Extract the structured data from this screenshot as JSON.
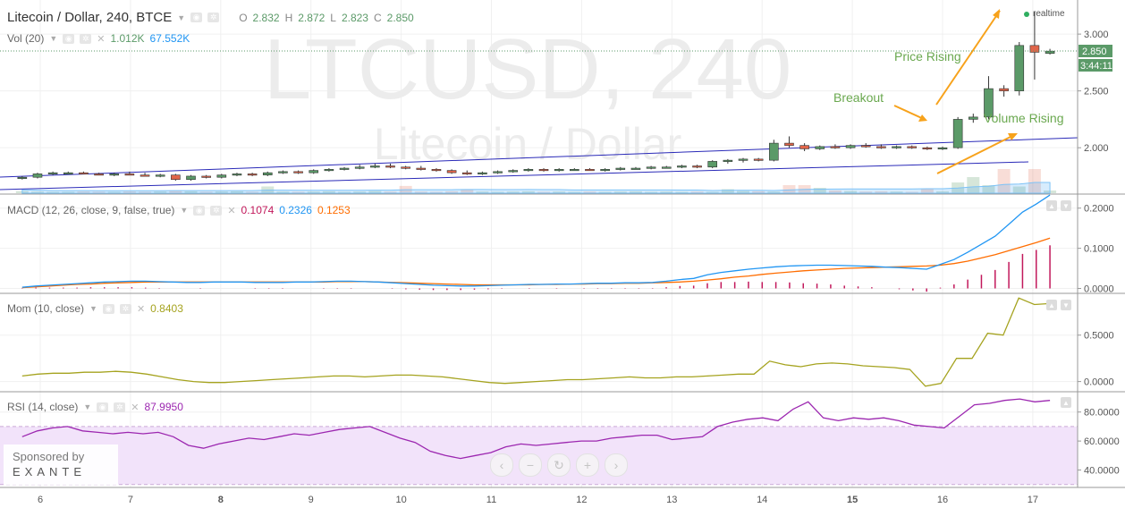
{
  "header": {
    "symbol_title": "Litecoin / Dollar, 240, BTCE",
    "o_label": "O",
    "o_value": "2.832",
    "h_label": "H",
    "h_value": "2.872",
    "l_label": "L",
    "l_value": "2.823",
    "c_label": "C",
    "c_value": "2.850"
  },
  "volume_legend": {
    "name": "Vol (20)",
    "value1": "1.012K",
    "value2": "67.552K"
  },
  "watermark": {
    "line1": "LTCUSD, 240",
    "line2": "Litecoin / Dollar"
  },
  "realtime_label": "realtime",
  "price_label": "2.850",
  "countdown_label": "3:44:11",
  "annotations": {
    "price_rising": "Price Rising",
    "breakout": "Breakout",
    "volume_rising": "Volume Rising"
  },
  "macd_legend": {
    "name": "MACD (12, 26, close, 9, false, true)",
    "v1": "0.1074",
    "v2": "0.2326",
    "v3": "0.1253"
  },
  "mom_legend": {
    "name": "Mom (10, close)",
    "v1": "0.8403"
  },
  "rsi_legend": {
    "name": "RSI (14, close)",
    "v1": "87.9950"
  },
  "sponsor": {
    "line1": "Sponsored by",
    "line2": "EXANTE"
  },
  "nav_icons": [
    "chevron-left-icon",
    "zoom-out-icon",
    "reset-icon",
    "zoom-in-icon",
    "chevron-right-icon"
  ],
  "colors": {
    "up": "#5b9a68",
    "down": "#e0654a",
    "macd": "#2196f3",
    "signal": "#ff6d00",
    "hist": "#c2185b",
    "mom": "#a5a31f",
    "rsi": "#9c27b0",
    "rsi_band": "#f2e3fa",
    "trendline": "#2a2ab8",
    "arrow": "#f7a21b",
    "annotation_text": "#6aa84f"
  },
  "chart_data": [
    {
      "type": "candlestick",
      "title": "Litecoin / Dollar, 240, BTCE",
      "x_ticks": [
        "6",
        "7",
        "8",
        "9",
        "10",
        "11",
        "12",
        "13",
        "14",
        "15",
        "16",
        "17"
      ],
      "y_ticks": [
        "2.000",
        "2.500",
        "3.000"
      ],
      "ylim": [
        1.6,
        3.3
      ],
      "grid": true,
      "candles": [
        {
          "x": 5.8,
          "o": 1.73,
          "h": 1.75,
          "l": 1.72,
          "c": 1.74
        },
        {
          "x": 5.97,
          "o": 1.74,
          "h": 1.78,
          "l": 1.73,
          "c": 1.77
        },
        {
          "x": 6.14,
          "o": 1.77,
          "h": 1.79,
          "l": 1.76,
          "c": 1.78
        },
        {
          "x": 6.31,
          "o": 1.78,
          "h": 1.79,
          "l": 1.77,
          "c": 1.78
        },
        {
          "x": 6.48,
          "o": 1.78,
          "h": 1.79,
          "l": 1.77,
          "c": 1.77
        },
        {
          "x": 6.65,
          "o": 1.77,
          "h": 1.78,
          "l": 1.76,
          "c": 1.76
        },
        {
          "x": 6.82,
          "o": 1.76,
          "h": 1.78,
          "l": 1.75,
          "c": 1.77
        },
        {
          "x": 6.99,
          "o": 1.77,
          "h": 1.79,
          "l": 1.76,
          "c": 1.76
        },
        {
          "x": 7.16,
          "o": 1.76,
          "h": 1.78,
          "l": 1.75,
          "c": 1.75
        },
        {
          "x": 7.33,
          "o": 1.75,
          "h": 1.77,
          "l": 1.74,
          "c": 1.76
        },
        {
          "x": 7.5,
          "o": 1.76,
          "h": 1.77,
          "l": 1.71,
          "c": 1.72
        },
        {
          "x": 7.67,
          "o": 1.72,
          "h": 1.76,
          "l": 1.71,
          "c": 1.75
        },
        {
          "x": 7.84,
          "o": 1.75,
          "h": 1.76,
          "l": 1.73,
          "c": 1.74
        },
        {
          "x": 8.01,
          "o": 1.74,
          "h": 1.77,
          "l": 1.73,
          "c": 1.76
        },
        {
          "x": 8.18,
          "o": 1.76,
          "h": 1.78,
          "l": 1.75,
          "c": 1.77
        },
        {
          "x": 8.35,
          "o": 1.77,
          "h": 1.78,
          "l": 1.75,
          "c": 1.76
        },
        {
          "x": 8.52,
          "o": 1.76,
          "h": 1.79,
          "l": 1.75,
          "c": 1.78
        },
        {
          "x": 8.69,
          "o": 1.78,
          "h": 1.8,
          "l": 1.77,
          "c": 1.79
        },
        {
          "x": 8.86,
          "o": 1.79,
          "h": 1.8,
          "l": 1.77,
          "c": 1.78
        },
        {
          "x": 9.03,
          "o": 1.78,
          "h": 1.81,
          "l": 1.77,
          "c": 1.8
        },
        {
          "x": 9.2,
          "o": 1.8,
          "h": 1.82,
          "l": 1.79,
          "c": 1.81
        },
        {
          "x": 9.37,
          "o": 1.81,
          "h": 1.83,
          "l": 1.8,
          "c": 1.82
        },
        {
          "x": 9.54,
          "o": 1.82,
          "h": 1.85,
          "l": 1.81,
          "c": 1.83
        },
        {
          "x": 9.71,
          "o": 1.83,
          "h": 1.86,
          "l": 1.82,
          "c": 1.84
        },
        {
          "x": 9.88,
          "o": 1.84,
          "h": 1.86,
          "l": 1.82,
          "c": 1.83
        },
        {
          "x": 10.05,
          "o": 1.83,
          "h": 1.84,
          "l": 1.81,
          "c": 1.82
        },
        {
          "x": 10.22,
          "o": 1.82,
          "h": 1.84,
          "l": 1.8,
          "c": 1.81
        },
        {
          "x": 10.39,
          "o": 1.81,
          "h": 1.82,
          "l": 1.79,
          "c": 1.8
        },
        {
          "x": 10.56,
          "o": 1.8,
          "h": 1.81,
          "l": 1.77,
          "c": 1.78
        },
        {
          "x": 10.73,
          "o": 1.78,
          "h": 1.8,
          "l": 1.76,
          "c": 1.77
        },
        {
          "x": 10.9,
          "o": 1.77,
          "h": 1.79,
          "l": 1.76,
          "c": 1.78
        },
        {
          "x": 11.07,
          "o": 1.78,
          "h": 1.8,
          "l": 1.77,
          "c": 1.79
        },
        {
          "x": 11.24,
          "o": 1.79,
          "h": 1.81,
          "l": 1.78,
          "c": 1.8
        },
        {
          "x": 11.41,
          "o": 1.8,
          "h": 1.82,
          "l": 1.79,
          "c": 1.81
        },
        {
          "x": 11.58,
          "o": 1.81,
          "h": 1.82,
          "l": 1.79,
          "c": 1.8
        },
        {
          "x": 11.75,
          "o": 1.8,
          "h": 1.82,
          "l": 1.79,
          "c": 1.81
        },
        {
          "x": 11.92,
          "o": 1.81,
          "h": 1.82,
          "l": 1.8,
          "c": 1.81
        },
        {
          "x": 12.09,
          "o": 1.81,
          "h": 1.82,
          "l": 1.8,
          "c": 1.8
        },
        {
          "x": 12.26,
          "o": 1.8,
          "h": 1.82,
          "l": 1.79,
          "c": 1.81
        },
        {
          "x": 12.43,
          "o": 1.81,
          "h": 1.83,
          "l": 1.8,
          "c": 1.82
        },
        {
          "x": 12.6,
          "o": 1.82,
          "h": 1.83,
          "l": 1.81,
          "c": 1.82
        },
        {
          "x": 12.77,
          "o": 1.82,
          "h": 1.84,
          "l": 1.81,
          "c": 1.83
        },
        {
          "x": 12.94,
          "o": 1.83,
          "h": 1.84,
          "l": 1.82,
          "c": 1.83
        },
        {
          "x": 13.11,
          "o": 1.83,
          "h": 1.85,
          "l": 1.82,
          "c": 1.84
        },
        {
          "x": 13.28,
          "o": 1.84,
          "h": 1.85,
          "l": 1.82,
          "c": 1.83
        },
        {
          "x": 13.45,
          "o": 1.83,
          "h": 1.89,
          "l": 1.82,
          "c": 1.88
        },
        {
          "x": 13.62,
          "o": 1.88,
          "h": 1.9,
          "l": 1.86,
          "c": 1.89
        },
        {
          "x": 13.79,
          "o": 1.89,
          "h": 1.91,
          "l": 1.87,
          "c": 1.9
        },
        {
          "x": 13.96,
          "o": 1.9,
          "h": 1.91,
          "l": 1.88,
          "c": 1.89
        },
        {
          "x": 14.13,
          "o": 1.89,
          "h": 2.07,
          "l": 1.88,
          "c": 2.04
        },
        {
          "x": 14.3,
          "o": 2.04,
          "h": 2.1,
          "l": 2.0,
          "c": 2.02
        },
        {
          "x": 14.47,
          "o": 2.02,
          "h": 2.04,
          "l": 1.97,
          "c": 1.99
        },
        {
          "x": 14.64,
          "o": 1.99,
          "h": 2.02,
          "l": 1.98,
          "c": 2.01
        },
        {
          "x": 14.81,
          "o": 2.01,
          "h": 2.03,
          "l": 1.99,
          "c": 2.0
        },
        {
          "x": 14.98,
          "o": 2.0,
          "h": 2.03,
          "l": 1.99,
          "c": 2.02
        },
        {
          "x": 15.15,
          "o": 2.02,
          "h": 2.04,
          "l": 2.0,
          "c": 2.01
        },
        {
          "x": 15.32,
          "o": 2.01,
          "h": 2.03,
          "l": 1.99,
          "c": 2.0
        },
        {
          "x": 15.49,
          "o": 2.0,
          "h": 2.02,
          "l": 1.99,
          "c": 2.01
        },
        {
          "x": 15.66,
          "o": 2.01,
          "h": 2.02,
          "l": 1.99,
          "c": 2.0
        },
        {
          "x": 15.83,
          "o": 2.0,
          "h": 2.01,
          "l": 1.98,
          "c": 1.99
        },
        {
          "x": 16.0,
          "o": 1.99,
          "h": 2.01,
          "l": 1.98,
          "c": 2.0
        },
        {
          "x": 16.17,
          "o": 2.0,
          "h": 2.27,
          "l": 1.99,
          "c": 2.25
        },
        {
          "x": 16.34,
          "o": 2.25,
          "h": 2.3,
          "l": 2.22,
          "c": 2.27
        },
        {
          "x": 16.51,
          "o": 2.27,
          "h": 2.63,
          "l": 2.25,
          "c": 2.52
        },
        {
          "x": 16.68,
          "o": 2.52,
          "h": 2.55,
          "l": 2.45,
          "c": 2.5
        },
        {
          "x": 16.85,
          "o": 2.5,
          "h": 2.93,
          "l": 2.46,
          "c": 2.9
        },
        {
          "x": 17.02,
          "o": 2.9,
          "h": 3.2,
          "l": 2.6,
          "c": 2.84
        },
        {
          "x": 17.19,
          "o": 2.83,
          "h": 2.87,
          "l": 2.82,
          "c": 2.85
        }
      ],
      "volume": [
        0.08,
        0.06,
        0.05,
        0.05,
        0.06,
        0.05,
        0.05,
        0.06,
        0.05,
        0.06,
        0.08,
        0.07,
        0.05,
        0.06,
        0.07,
        0.05,
        0.25,
        0.06,
        0.05,
        0.06,
        0.07,
        0.05,
        0.06,
        0.08,
        0.06,
        0.27,
        0.06,
        0.05,
        0.07,
        0.15,
        0.06,
        0.05,
        0.06,
        0.07,
        0.05,
        0.06,
        0.05,
        0.06,
        0.05,
        0.06,
        0.07,
        0.05,
        0.06,
        0.05,
        0.06,
        0.05,
        0.15,
        0.08,
        0.07,
        0.06,
        0.3,
        0.3,
        0.2,
        0.1,
        0.08,
        0.06,
        0.07,
        0.06,
        0.05,
        0.15,
        0.07,
        0.4,
        0.6,
        0.3,
        0.9,
        0.25,
        0.9,
        0.1
      ]
    },
    {
      "type": "line",
      "title": "MACD (12, 26, close, 9, false, true)",
      "y_ticks": [
        "0.0000",
        "0.1000",
        "0.2000"
      ],
      "ylim": [
        -0.01,
        0.235
      ],
      "series": [
        {
          "values": [
            0.003,
            0.006,
            0.008,
            0.01,
            0.012,
            0.014,
            0.016,
            0.017,
            0.018,
            0.018,
            0.017,
            0.016,
            0.015,
            0.015,
            0.016,
            0.016,
            0.016,
            0.015,
            0.015,
            0.015,
            0.016,
            0.016,
            0.017,
            0.018,
            0.018,
            0.017,
            0.016,
            0.014,
            0.012,
            0.01,
            0.008,
            0.007,
            0.006,
            0.006,
            0.007,
            0.008,
            0.009,
            0.01,
            0.01,
            0.011,
            0.011,
            0.012,
            0.013,
            0.013,
            0.014,
            0.014,
            0.015,
            0.018,
            0.022,
            0.025,
            0.034,
            0.04,
            0.044,
            0.048,
            0.051,
            0.054,
            0.056,
            0.057,
            0.058,
            0.058,
            0.057,
            0.056,
            0.055,
            0.053,
            0.052,
            0.05,
            0.048,
            0.06,
            0.072,
            0.09,
            0.11,
            0.13,
            0.16,
            0.19,
            0.21,
            0.2326
          ]
        },
        {
          "values": [
            0.002,
            0.004,
            0.006,
            0.008,
            0.01,
            0.011,
            0.013,
            0.014,
            0.015,
            0.016,
            0.016,
            0.016,
            0.016,
            0.016,
            0.016,
            0.016,
            0.016,
            0.016,
            0.016,
            0.016,
            0.016,
            0.016,
            0.016,
            0.017,
            0.017,
            0.017,
            0.016,
            0.015,
            0.014,
            0.013,
            0.012,
            0.011,
            0.01,
            0.009,
            0.009,
            0.009,
            0.009,
            0.009,
            0.01,
            0.01,
            0.011,
            0.011,
            0.012,
            0.012,
            0.013,
            0.013,
            0.014,
            0.015,
            0.016,
            0.018,
            0.021,
            0.024,
            0.028,
            0.031,
            0.035,
            0.038,
            0.041,
            0.044,
            0.046,
            0.048,
            0.05,
            0.051,
            0.052,
            0.053,
            0.054,
            0.055,
            0.056,
            0.058,
            0.062,
            0.068,
            0.076,
            0.084,
            0.094,
            0.104,
            0.114,
            0.1253
          ]
        },
        {
          "values": [
            0.001,
            0.002,
            0.002,
            0.002,
            0.002,
            0.003,
            0.003,
            0.003,
            0.003,
            0.002,
            0.001,
            0.0,
            0.0,
            -0.001,
            0.0,
            0.0,
            0.0,
            -0.001,
            -0.001,
            -0.001,
            0.0,
            0.0,
            0.001,
            0.001,
            0.001,
            0.0,
            0.0,
            -0.001,
            -0.002,
            -0.003,
            -0.004,
            -0.004,
            -0.004,
            -0.003,
            -0.002,
            -0.001,
            0.0,
            0.001,
            0.0,
            0.001,
            0.0,
            0.001,
            0.001,
            0.001,
            0.001,
            0.001,
            0.001,
            0.003,
            0.006,
            0.007,
            0.013,
            0.016,
            0.016,
            0.017,
            0.016,
            0.016,
            0.015,
            0.013,
            0.012,
            0.01,
            0.007,
            0.005,
            0.003,
            0.0,
            -0.002,
            -0.005,
            -0.008,
            0.002,
            0.01,
            0.022,
            0.034,
            0.046,
            0.066,
            0.086,
            0.096,
            0.1074
          ]
        }
      ]
    },
    {
      "type": "line",
      "title": "Mom (10, close)",
      "y_ticks": [
        "0.0000",
        "0.5000"
      ],
      "ylim": [
        -0.1,
        0.95
      ],
      "series": [
        {
          "values": [
            0.06,
            0.08,
            0.09,
            0.09,
            0.1,
            0.1,
            0.11,
            0.1,
            0.08,
            0.05,
            0.02,
            0.0,
            -0.01,
            -0.01,
            0.0,
            0.01,
            0.02,
            0.03,
            0.04,
            0.05,
            0.06,
            0.06,
            0.05,
            0.06,
            0.07,
            0.07,
            0.06,
            0.05,
            0.03,
            0.01,
            -0.01,
            -0.02,
            -0.01,
            0.0,
            0.01,
            0.02,
            0.02,
            0.03,
            0.04,
            0.05,
            0.04,
            0.04,
            0.05,
            0.05,
            0.06,
            0.07,
            0.08,
            0.08,
            0.22,
            0.18,
            0.16,
            0.19,
            0.2,
            0.19,
            0.17,
            0.16,
            0.15,
            0.13,
            -0.05,
            -0.02,
            0.25,
            0.25,
            0.52,
            0.5,
            0.9,
            0.83,
            0.8403
          ]
        }
      ]
    },
    {
      "type": "line",
      "title": "RSI (14, close)",
      "y_ticks": [
        "40.0000",
        "60.0000",
        "80.0000"
      ],
      "ylim": [
        28,
        94
      ],
      "band": [
        30,
        70
      ],
      "series": [
        {
          "values": [
            63,
            67,
            69,
            70,
            67,
            66,
            65,
            66,
            65,
            66,
            63,
            57,
            55,
            58,
            60,
            62,
            61,
            63,
            65,
            64,
            66,
            68,
            69,
            70,
            66,
            62,
            59,
            53,
            50,
            48,
            50,
            52,
            56,
            58,
            57,
            58,
            59,
            60,
            60,
            62,
            63,
            64,
            64,
            61,
            62,
            63,
            70,
            73,
            75,
            76,
            74,
            82,
            87,
            76,
            74,
            76,
            75,
            76,
            74,
            71,
            70,
            69,
            77,
            85,
            86,
            88,
            89,
            87,
            88
          ]
        }
      ]
    }
  ]
}
